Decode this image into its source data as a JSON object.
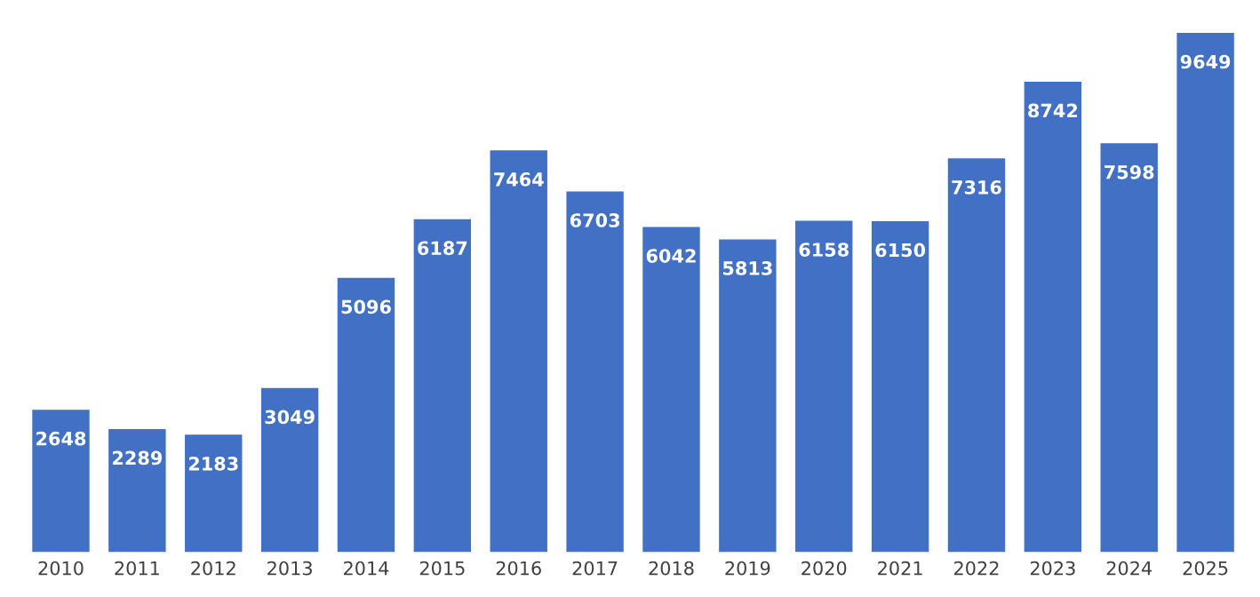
{
  "chart_data": {
    "type": "bar",
    "categories": [
      "2010",
      "2011",
      "2012",
      "2013",
      "2014",
      "2015",
      "2016",
      "2017",
      "2018",
      "2019",
      "2020",
      "2021",
      "2022",
      "2023",
      "2024",
      "2025"
    ],
    "values": [
      2648,
      2289,
      2183,
      3049,
      5096,
      6187,
      7464,
      6703,
      6042,
      5813,
      6158,
      6150,
      7316,
      8742,
      7598,
      9649
    ],
    "color": "#4170c4",
    "data_labels": true,
    "tick_labels": "x",
    "grid": false,
    "legend": false
  }
}
